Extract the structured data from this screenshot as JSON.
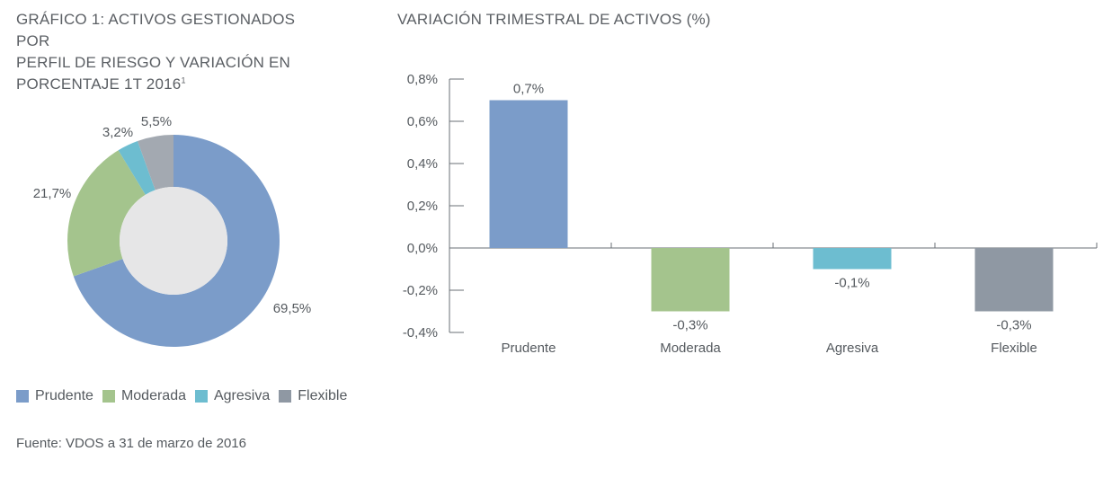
{
  "chart_data": [
    {
      "type": "pie",
      "title_lines": [
        "GRÁFICO 1: ACTIVOS GESTIONADOS POR",
        "PERFIL DE RIESGO Y VARIACIÓN EN",
        "PORCENTAJE 1T 2016"
      ],
      "title_superscript": "1",
      "donut": true,
      "categories": [
        "Prudente",
        "Moderada",
        "Agresiva",
        "Flexible"
      ],
      "values": [
        69.5,
        21.7,
        3.2,
        5.5
      ],
      "value_labels": [
        "69,5%",
        "21,7%",
        "3,2%",
        "5,5%"
      ],
      "colors": [
        "#7b9cc9",
        "#a4c48d",
        "#6dbdd0",
        "#a3a9b1"
      ],
      "center_color": "#e6e6e7",
      "legend": {
        "placement": "bottom-left",
        "items": [
          {
            "label": "Prudente",
            "color": "#7b9cc9"
          },
          {
            "label": "Moderada",
            "color": "#a4c48d"
          },
          {
            "label": "Agresiva",
            "color": "#6dbdd0"
          },
          {
            "label": "Flexible",
            "color": "#8f98a3"
          }
        ]
      }
    },
    {
      "type": "bar",
      "title": "VARIACIÓN TRIMESTRAL DE ACTIVOS (%)",
      "xlabel": "",
      "ylabel": "",
      "categories": [
        "Prudente",
        "Moderada",
        "Agresiva",
        "Flexible"
      ],
      "values": [
        0.7,
        -0.3,
        -0.1,
        -0.3
      ],
      "value_labels": [
        "0,7%",
        "-0,3%",
        "-0,1%",
        "-0,3%"
      ],
      "colors": [
        "#7b9cc9",
        "#a4c48d",
        "#6dbdd0",
        "#8f98a3"
      ],
      "ylim": [
        -0.4,
        0.8
      ],
      "yticks": [
        0.8,
        0.6,
        0.4,
        0.2,
        0.0,
        -0.2,
        -0.4
      ],
      "ytick_labels": [
        "0,8%",
        "0,6%",
        "0,4%",
        "0,2%",
        "0,0%",
        "-0,2%",
        "-0,4%"
      ],
      "grid": false
    }
  ],
  "source": "Fuente: VDOS a 31 de marzo de 2016"
}
